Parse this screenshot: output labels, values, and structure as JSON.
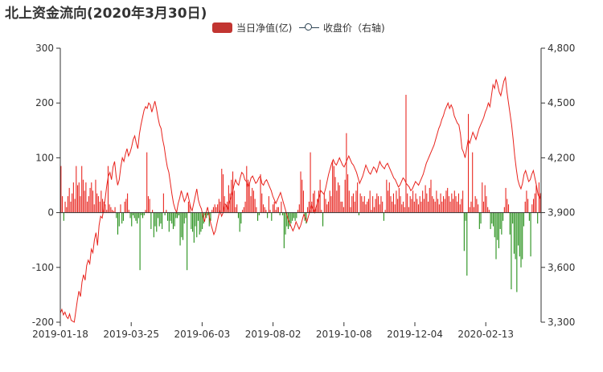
{
  "title": "北上资金流向(2020年3月30日)",
  "legend": {
    "bar_label": "当日净值(亿)",
    "line_label": "收盘价（右轴)"
  },
  "colors": {
    "positive_bar": "#e8231d",
    "negative_bar": "#1e8c12",
    "price_line": "#e8231d",
    "legend_bar": "#c23531",
    "legend_line": "#2f4554",
    "axis": "#333333"
  },
  "chart_data": {
    "type": "bar",
    "title": "北上资金流向(2020年3月30日)",
    "xlabel": "",
    "ylabel": "",
    "x_start": "2019-01-18",
    "x_end": "2020-03-30",
    "x_tick_labels": [
      "2019-01-18",
      "2019-03-25",
      "2019-06-03",
      "2019-08-02",
      "2019-10-08",
      "2019-12-04",
      "2020-02-13"
    ],
    "y_left": {
      "lim": [
        -200,
        300
      ],
      "ticks": [
        -200,
        -100,
        0,
        100,
        200,
        300
      ],
      "tick_labels": [
        "-200",
        "-100",
        "0",
        "100",
        "200",
        "300"
      ]
    },
    "y_right": {
      "lim": [
        3300,
        4800
      ],
      "ticks": [
        3300,
        3600,
        3900,
        4200,
        4500,
        4800
      ],
      "tick_labels": [
        "3,300",
        "3,600",
        "3,900",
        "4,200",
        "4,500",
        "4,800"
      ]
    },
    "grid": false,
    "legend_position": "top",
    "series": [
      {
        "name": "当日净值(亿)",
        "type": "bar",
        "values": [
          85,
          30,
          -15,
          20,
          10,
          30,
          45,
          20,
          35,
          55,
          25,
          85,
          50,
          55,
          30,
          85,
          60,
          40,
          55,
          20,
          30,
          45,
          55,
          40,
          15,
          60,
          35,
          30,
          20,
          40,
          25,
          20,
          15,
          5,
          85,
          15,
          10,
          5,
          3,
          10,
          -10,
          -40,
          -25,
          15,
          -20,
          -15,
          20,
          25,
          35,
          5,
          -10,
          -25,
          -5,
          -10,
          -15,
          -20,
          -10,
          -105,
          -5,
          -10,
          -5,
          5,
          110,
          30,
          25,
          -30,
          5,
          -45,
          -25,
          -35,
          -10,
          -25,
          -20,
          -30,
          35,
          -5,
          5,
          -15,
          -35,
          -15,
          -20,
          -30,
          -25,
          -10,
          -10,
          -5,
          -60,
          -45,
          -50,
          -20,
          -10,
          -105,
          20,
          15,
          -30,
          -35,
          -55,
          -25,
          -45,
          -15,
          -40,
          -35,
          -30,
          -20,
          -5,
          -10,
          -5,
          -25,
          -15,
          5,
          10,
          15,
          10,
          15,
          25,
          20,
          80,
          70,
          30,
          15,
          20,
          50,
          35,
          60,
          75,
          40,
          10,
          15,
          -10,
          -35,
          -20,
          5,
          10,
          20,
          85,
          60,
          55,
          30,
          45,
          40,
          25,
          10,
          -15,
          -5,
          70,
          35,
          15,
          10,
          5,
          -10,
          30,
          5,
          -15,
          15,
          20,
          5,
          10,
          10,
          -5,
          20,
          -5,
          -65,
          -40,
          -25,
          -30,
          -25,
          -20,
          -15,
          -10,
          -15,
          -10,
          5,
          15,
          75,
          60,
          40,
          -15,
          -20,
          10,
          20,
          110,
          20,
          35,
          40,
          10,
          25,
          40,
          60,
          5,
          -25,
          35,
          25,
          15,
          20,
          40,
          30,
          95,
          85,
          65,
          40,
          55,
          50,
          20,
          20,
          10,
          60,
          145,
          70,
          40,
          10,
          30,
          35,
          20,
          40,
          55,
          -5,
          35,
          30,
          20,
          30,
          15,
          20,
          25,
          40,
          5,
          30,
          10,
          25,
          35,
          30,
          15,
          30,
          20,
          -15,
          5,
          60,
          40,
          55,
          30,
          20,
          35,
          15,
          40,
          25,
          45,
          30,
          15,
          20,
          10,
          215,
          35,
          10,
          30,
          25,
          40,
          20,
          35,
          25,
          15,
          30,
          20,
          40,
          25,
          50,
          35,
          20,
          45,
          60,
          30,
          25,
          20,
          40,
          25,
          15,
          35,
          20,
          30,
          25,
          40,
          45,
          30,
          20,
          35,
          25,
          40,
          30,
          20,
          35,
          15,
          25,
          40,
          -70,
          -15,
          -115,
          180,
          10,
          20,
          110,
          10,
          30,
          25,
          15,
          -30,
          -20,
          55,
          20,
          50,
          30,
          10,
          5,
          -30,
          -20,
          -25,
          -45,
          -85,
          -50,
          -65,
          -30,
          -40,
          -15,
          10,
          45,
          25,
          15,
          -40,
          -140,
          -20,
          -75,
          -85,
          -145,
          -60,
          -80,
          -100,
          -85,
          -25,
          20,
          40,
          25,
          -15,
          -80,
          15,
          25,
          35,
          50,
          -20,
          55,
          35
        ]
      },
      {
        "name": "收盘价（右轴)",
        "type": "line",
        "axis": "right",
        "values": [
          3350,
          3370,
          3340,
          3355,
          3330,
          3320,
          3345,
          3310,
          3305,
          3300,
          3360,
          3420,
          3470,
          3440,
          3520,
          3560,
          3530,
          3610,
          3640,
          3620,
          3700,
          3680,
          3750,
          3790,
          3720,
          3830,
          3880,
          3870,
          3920,
          3980,
          4050,
          4100,
          4120,
          4080,
          4150,
          4180,
          4100,
          4050,
          4080,
          4150,
          4200,
          4180,
          4220,
          4250,
          4210,
          4230,
          4260,
          4300,
          4320,
          4280,
          4250,
          4330,
          4380,
          4420,
          4460,
          4480,
          4470,
          4500,
          4490,
          4450,
          4480,
          4510,
          4470,
          4420,
          4380,
          4360,
          4300,
          4260,
          4200,
          4150,
          4120,
          4060,
          4000,
          3950,
          3920,
          3900,
          3950,
          3980,
          4020,
          3990,
          3960,
          3980,
          4010,
          3970,
          3930,
          3910,
          3950,
          3990,
          4030,
          3970,
          3940,
          3920,
          3880,
          3850,
          3900,
          3930,
          3880,
          3840,
          3810,
          3780,
          3800,
          3840,
          3880,
          3910,
          3880,
          3900,
          3950,
          3940,
          3920,
          3960,
          3980,
          4010,
          4050,
          4080,
          4060,
          4050,
          4090,
          4120,
          4110,
          4080,
          4070,
          4040,
          4060,
          4090,
          4100,
          4080,
          4060,
          4070,
          4090,
          4100,
          4060,
          4050,
          4070,
          4080,
          4060,
          4040,
          4020,
          3990,
          3970,
          3950,
          3970,
          3990,
          4010,
          3980,
          3950,
          3920,
          3890,
          3860,
          3840,
          3820,
          3800,
          3820,
          3850,
          3830,
          3810,
          3830,
          3860,
          3890,
          3870,
          3850,
          3880,
          3910,
          3940,
          3920,
          3900,
          3930,
          3960,
          3990,
          4020,
          4010,
          4000,
          4030,
          4070,
          4110,
          4140,
          4170,
          4190,
          4170,
          4160,
          4180,
          4200,
          4180,
          4160,
          4150,
          4170,
          4190,
          4210,
          4190,
          4170,
          4160,
          4140,
          4120,
          4090,
          4060,
          4080,
          4100,
          4130,
          4160,
          4140,
          4120,
          4110,
          4130,
          4150,
          4140,
          4120,
          4150,
          4180,
          4160,
          4150,
          4140,
          4160,
          4170,
          4150,
          4130,
          4110,
          4090,
          4080,
          4060,
          4040,
          4050,
          4070,
          4090,
          4080,
          4060,
          4050,
          4040,
          4020,
          4030,
          4050,
          4070,
          4060,
          4050,
          4070,
          4090,
          4110,
          4140,
          4170,
          4190,
          4210,
          4230,
          4250,
          4270,
          4300,
          4330,
          4360,
          4380,
          4410,
          4430,
          4460,
          4480,
          4500,
          4470,
          4490,
          4470,
          4430,
          4410,
          4390,
          4380,
          4330,
          4250,
          4230,
          4200,
          4250,
          4300,
          4280,
          4310,
          4340,
          4320,
          4300,
          4330,
          4360,
          4380,
          4400,
          4420,
          4450,
          4470,
          4500,
          4480,
          4540,
          4600,
          4580,
          4630,
          4600,
          4560,
          4540,
          4580,
          4620,
          4640,
          4560,
          4500,
          4440,
          4380,
          4300,
          4210,
          4140,
          4080,
          4050,
          4030,
          4060,
          4110,
          4130,
          4100,
          4070,
          4080,
          4110,
          4130,
          4090,
          4050,
          4000,
          3980,
          4010
        ]
      }
    ]
  }
}
